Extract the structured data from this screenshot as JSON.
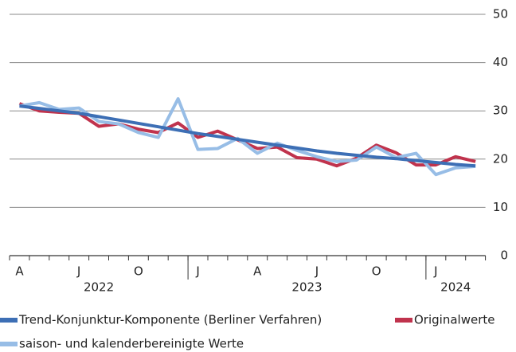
{
  "chart_data": {
    "type": "line",
    "categories": [
      "A",
      null,
      null,
      "J",
      null,
      null,
      "O",
      null,
      null,
      "J",
      null,
      null,
      "A",
      null,
      null,
      "J",
      null,
      null,
      "O",
      null,
      null,
      "J",
      null,
      null
    ],
    "x_groups": [
      {
        "label": "2022",
        "count": 9
      },
      {
        "label": "2023",
        "count": 12
      },
      {
        "label": "2024",
        "count": 3
      }
    ],
    "series": [
      {
        "name": "Trend-Konjunktur-Komponente (Berliner Verfahren)",
        "color": "#3d6fb5",
        "values": [
          31,
          30.5,
          30,
          29.5,
          28.8,
          28.1,
          27.4,
          26.7,
          26,
          25.3,
          24.7,
          24.1,
          23.5,
          22.9,
          22.3,
          21.7,
          21.2,
          20.8,
          20.4,
          20.1,
          19.7,
          19.3,
          18.9,
          18.6
        ]
      },
      {
        "name": "Originalwerte",
        "color": "#c0334d",
        "values": [
          31.5,
          30,
          29.7,
          29.5,
          26.8,
          27.3,
          26.2,
          25.5,
          27.5,
          24.5,
          25.8,
          24,
          22.2,
          22.5,
          20.3,
          20,
          18.6,
          20.2,
          22.9,
          21.3,
          18.8,
          18.8,
          20.5,
          19.5
        ]
      },
      {
        "name": "saison- und kalenderbereinigte Werte",
        "color": "#97bde6",
        "values": [
          31,
          31.7,
          30.3,
          30.6,
          27.8,
          27.3,
          25.5,
          24.5,
          32.5,
          22,
          22.2,
          24.3,
          21.2,
          23.3,
          21.8,
          20.5,
          19.5,
          19.8,
          22.5,
          20.3,
          21.2,
          16.8,
          18.2,
          18.5
        ]
      }
    ],
    "ylim": [
      0,
      50
    ],
    "yticks": [
      0,
      10,
      20,
      30,
      40,
      50
    ],
    "grid": true
  }
}
